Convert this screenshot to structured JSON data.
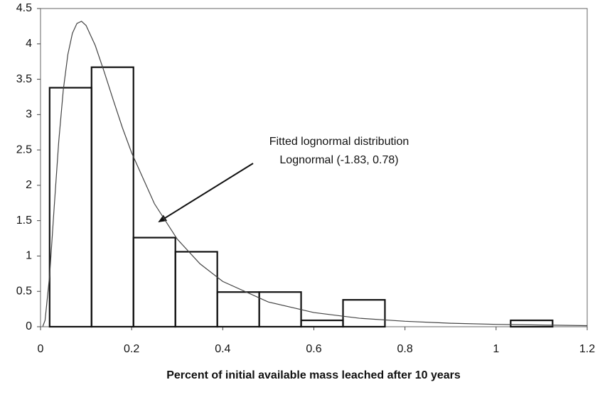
{
  "chart_data": {
    "type": "histogram",
    "bins": [
      0.02,
      0.112,
      0.204,
      0.296,
      0.388,
      0.48,
      0.572,
      0.664,
      0.756,
      0.848,
      0.94,
      1.032,
      1.124
    ],
    "values": [
      3.38,
      3.67,
      1.26,
      1.06,
      0.49,
      0.49,
      0.09,
      0.38,
      0,
      0,
      0,
      0.09
    ],
    "color": "#111111",
    "curve": {
      "type": "line",
      "color": "#444444",
      "x": [
        0.005,
        0.01,
        0.02,
        0.03,
        0.04,
        0.05,
        0.06,
        0.07,
        0.08,
        0.09,
        0.1,
        0.12,
        0.14,
        0.16,
        0.18,
        0.2,
        0.25,
        0.3,
        0.35,
        0.4,
        0.5,
        0.6,
        0.7,
        0.8,
        0.9,
        1.0,
        1.2
      ],
      "values": [
        0.005,
        0.091,
        0.725,
        1.69,
        2.62,
        3.35,
        3.85,
        4.15,
        4.29,
        4.32,
        4.26,
        3.98,
        3.6,
        3.2,
        2.81,
        2.46,
        1.74,
        1.24,
        0.89,
        0.64,
        0.35,
        0.2,
        0.12,
        0.077,
        0.049,
        0.033,
        0.015
      ]
    },
    "annotation": [
      "Fitted lognormal distribution",
      "Lognormal (-1.83, 0.78)"
    ],
    "xlabel": "Percent of initial available mass leached after 10 years",
    "xlim": [
      0,
      1.2
    ],
    "xticks": [
      0,
      0.2,
      0.4,
      0.6,
      0.8,
      1,
      1.2
    ],
    "ylim": [
      0,
      4.5
    ],
    "yticks": [
      0,
      0.5,
      1,
      1.5,
      2,
      2.5,
      3,
      3.5,
      4,
      4.5
    ],
    "grid": false
  }
}
